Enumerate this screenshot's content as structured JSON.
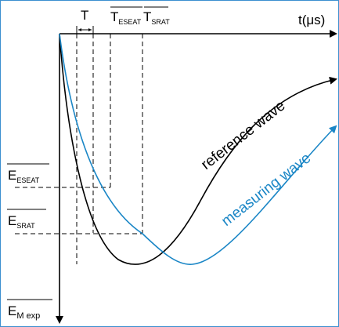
{
  "axes": {
    "x_label": "t(μs)",
    "y_label_main": "E",
    "y_label_sub": "M exp"
  },
  "markers": {
    "T": "T",
    "T_eseat_main": "T",
    "T_eseat_sub": "ESEAT",
    "T_srat_main": "T",
    "T_srat_sub": "SRAT"
  },
  "levels": {
    "E_eseat_main": "E",
    "E_eseat_sub": "ESEAT",
    "E_srat_main": "E",
    "E_srat_sub": "SRAT"
  },
  "curves": {
    "reference_label": "reference wave",
    "measuring_label": "measuring wave",
    "reference_color": "#000000",
    "measuring_color": "#1a86c6"
  }
}
